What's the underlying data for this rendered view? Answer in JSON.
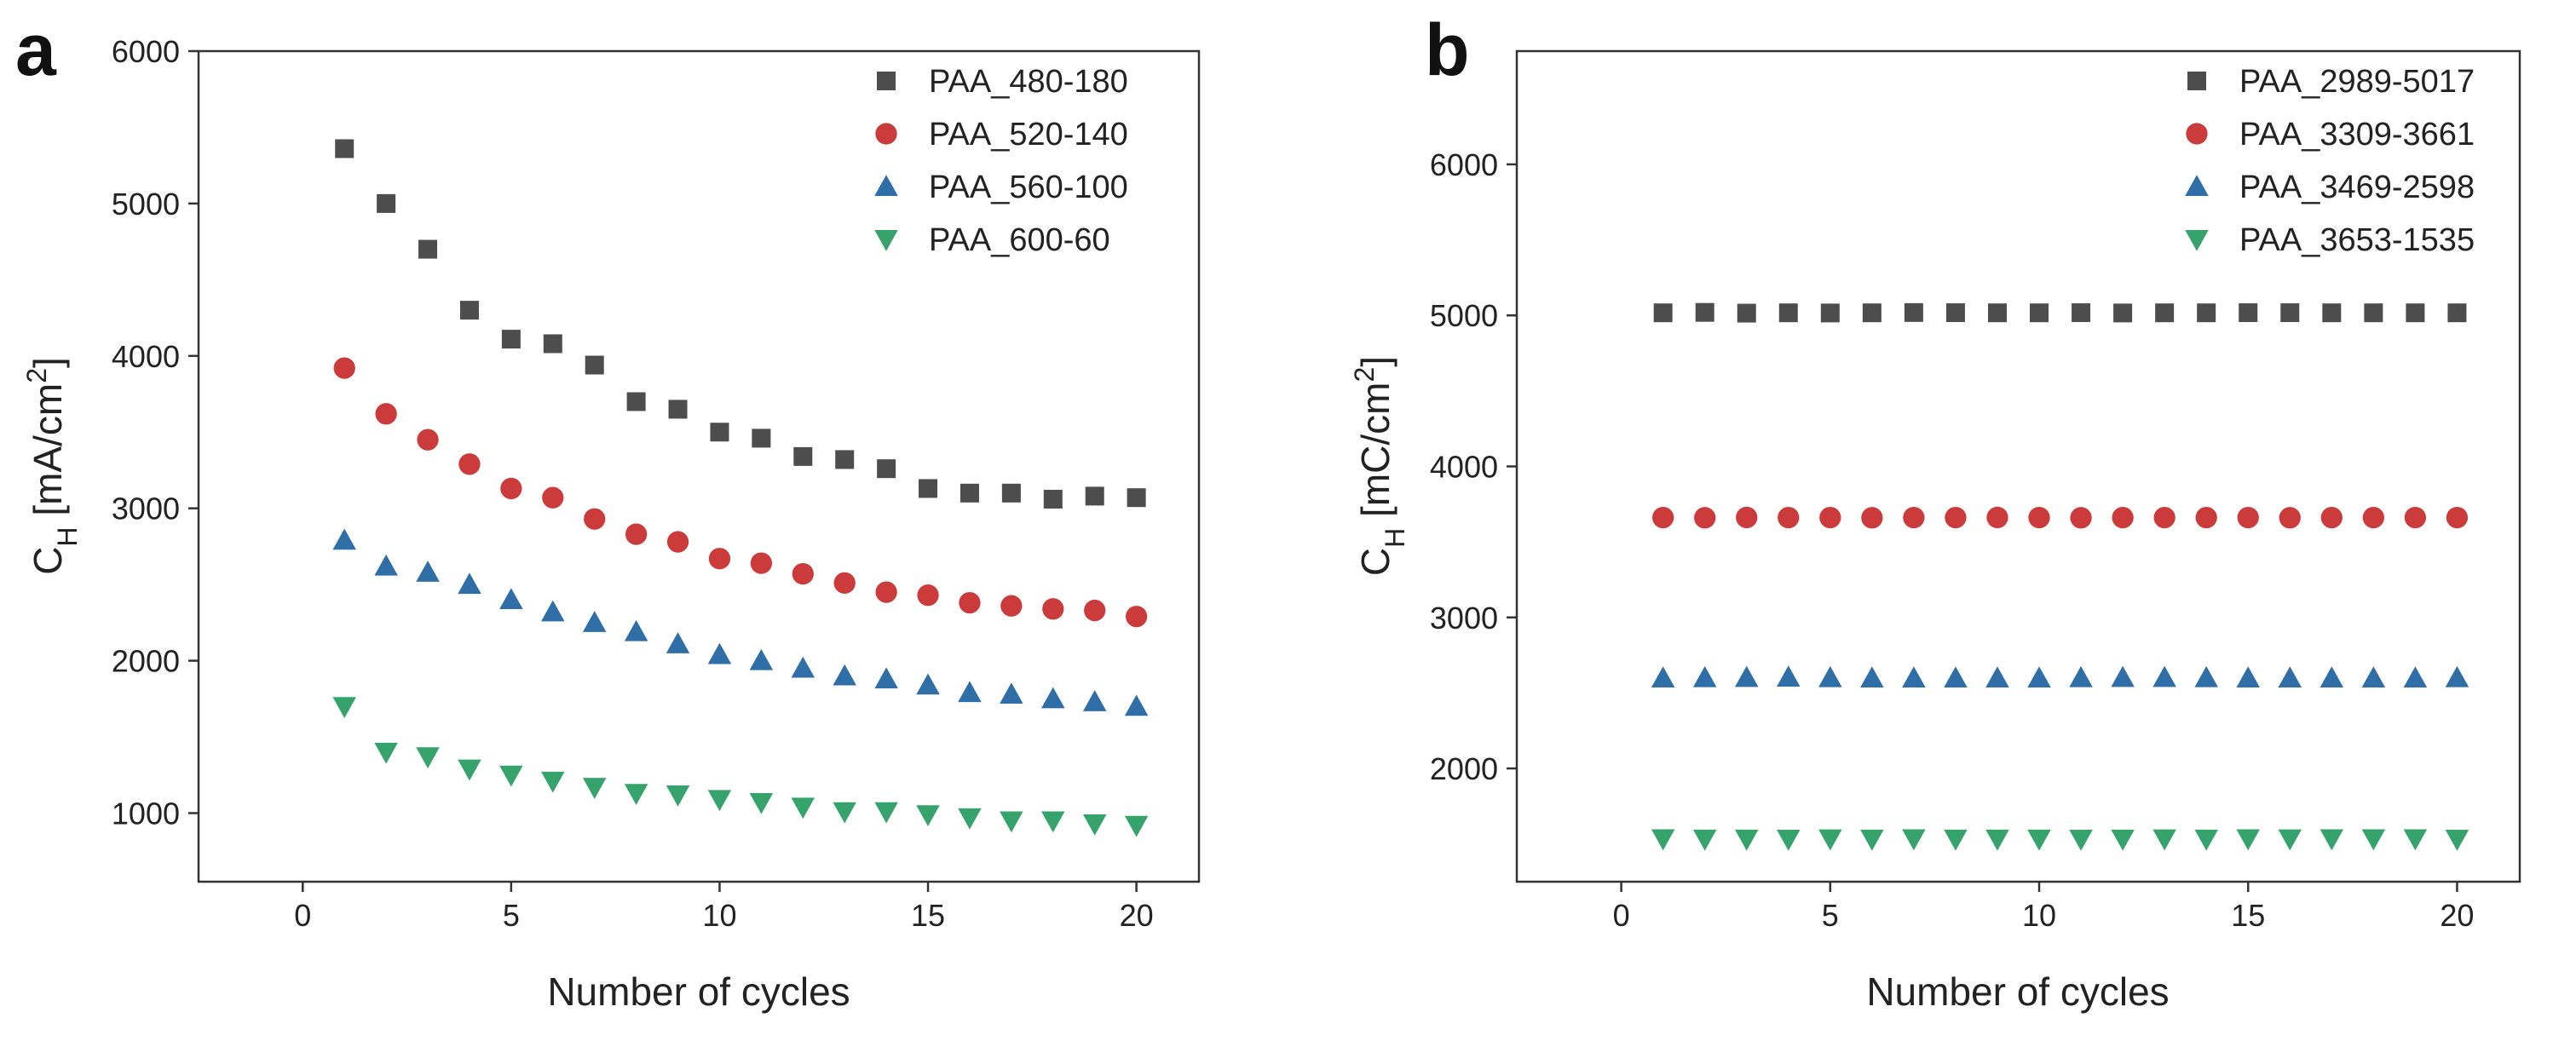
{
  "chart_data": [
    {
      "type": "scatter",
      "panel_label": "a",
      "xlabel": "Number of cycles",
      "ylabel": {
        "main": "C",
        "sub": "H",
        "unit": " [mA/cm",
        "sup": "2",
        "close": "]"
      },
      "xlim": [
        -2.5,
        21.5
      ],
      "ylim": [
        550,
        6000
      ],
      "xticks": [
        0,
        5,
        10,
        15,
        20
      ],
      "xtick_labels": [
        "0",
        "5",
        "10",
        "15",
        "20"
      ],
      "yticks": [
        1000,
        2000,
        3000,
        4000,
        5000,
        6000
      ],
      "ytick_labels": [
        "1000",
        "2000",
        "3000",
        "4000",
        "5000",
        "6000"
      ],
      "legend_position": "top-right",
      "x": [
        1,
        2,
        3,
        4,
        5,
        6,
        7,
        8,
        9,
        10,
        11,
        12,
        13,
        14,
        15,
        16,
        17,
        18,
        19,
        20
      ],
      "series": [
        {
          "name": "PAA_480-180",
          "marker": "square",
          "color": "#4d4d4d",
          "values": [
            5360,
            5000,
            4700,
            4300,
            4110,
            4080,
            3940,
            3700,
            3650,
            3500,
            3460,
            3340,
            3320,
            3260,
            3130,
            3100,
            3100,
            3060,
            3080,
            3070
          ]
        },
        {
          "name": "PAA_520-140",
          "marker": "circle",
          "color": "#cc3b3b",
          "values": [
            3920,
            3620,
            3450,
            3290,
            3130,
            3070,
            2930,
            2830,
            2780,
            2670,
            2640,
            2570,
            2510,
            2450,
            2430,
            2380,
            2360,
            2340,
            2330,
            2290
          ]
        },
        {
          "name": "PAA_560-100",
          "marker": "triangle-up",
          "color": "#2f6ea6",
          "values": [
            2790,
            2620,
            2580,
            2500,
            2400,
            2320,
            2250,
            2190,
            2110,
            2040,
            2000,
            1950,
            1900,
            1880,
            1840,
            1790,
            1780,
            1750,
            1730,
            1700
          ]
        },
        {
          "name": "PAA_600-60",
          "marker": "triangle-down",
          "color": "#36a36d",
          "values": [
            1700,
            1400,
            1370,
            1290,
            1250,
            1210,
            1170,
            1130,
            1120,
            1090,
            1070,
            1040,
            1010,
            1010,
            990,
            970,
            950,
            950,
            930,
            920
          ]
        }
      ]
    },
    {
      "type": "scatter",
      "panel_label": "b",
      "xlabel": "Number of cycles",
      "ylabel": {
        "main": "C",
        "sub": "H",
        "unit": " [mC/cm",
        "sup": "2",
        "close": "]"
      },
      "xlim": [
        -2.5,
        21.5
      ],
      "ylim": [
        1250,
        6750
      ],
      "xticks": [
        0,
        5,
        10,
        15,
        20
      ],
      "xtick_labels": [
        "0",
        "5",
        "10",
        "15",
        "20"
      ],
      "yticks": [
        2000,
        3000,
        4000,
        5000,
        6000
      ],
      "ytick_labels": [
        "2000",
        "3000",
        "4000",
        "5000",
        "6000"
      ],
      "legend_position": "top-right",
      "x": [
        1,
        2,
        3,
        4,
        5,
        6,
        7,
        8,
        9,
        10,
        11,
        12,
        13,
        14,
        15,
        16,
        17,
        18,
        19,
        20
      ],
      "series": [
        {
          "name": "PAA_2989-5017",
          "marker": "square",
          "color": "#4d4d4d",
          "values": [
            5017,
            5020,
            5015,
            5017,
            5016,
            5017,
            5019,
            5018,
            5017,
            5017,
            5018,
            5016,
            5017,
            5017,
            5018,
            5018,
            5017,
            5017,
            5017,
            5017
          ]
        },
        {
          "name": "PAA_3309-3661",
          "marker": "circle",
          "color": "#cc3b3b",
          "values": [
            3661,
            3660,
            3662,
            3661,
            3661,
            3660,
            3661,
            3661,
            3662,
            3661,
            3660,
            3661,
            3661,
            3661,
            3661,
            3660,
            3661,
            3661,
            3661,
            3661
          ]
        },
        {
          "name": "PAA_3469-2598",
          "marker": "triangle-up",
          "color": "#2f6ea6",
          "values": [
            2598,
            2600,
            2602,
            2604,
            2600,
            2598,
            2598,
            2598,
            2598,
            2598,
            2600,
            2602,
            2602,
            2600,
            2598,
            2598,
            2598,
            2598,
            2598,
            2600
          ]
        },
        {
          "name": "PAA_3653-1535",
          "marker": "triangle-down",
          "color": "#36a36d",
          "values": [
            1535,
            1533,
            1533,
            1532,
            1534,
            1533,
            1535,
            1533,
            1533,
            1533,
            1532,
            1533,
            1534,
            1533,
            1535,
            1534,
            1535,
            1535,
            1535,
            1532
          ]
        }
      ]
    }
  ]
}
